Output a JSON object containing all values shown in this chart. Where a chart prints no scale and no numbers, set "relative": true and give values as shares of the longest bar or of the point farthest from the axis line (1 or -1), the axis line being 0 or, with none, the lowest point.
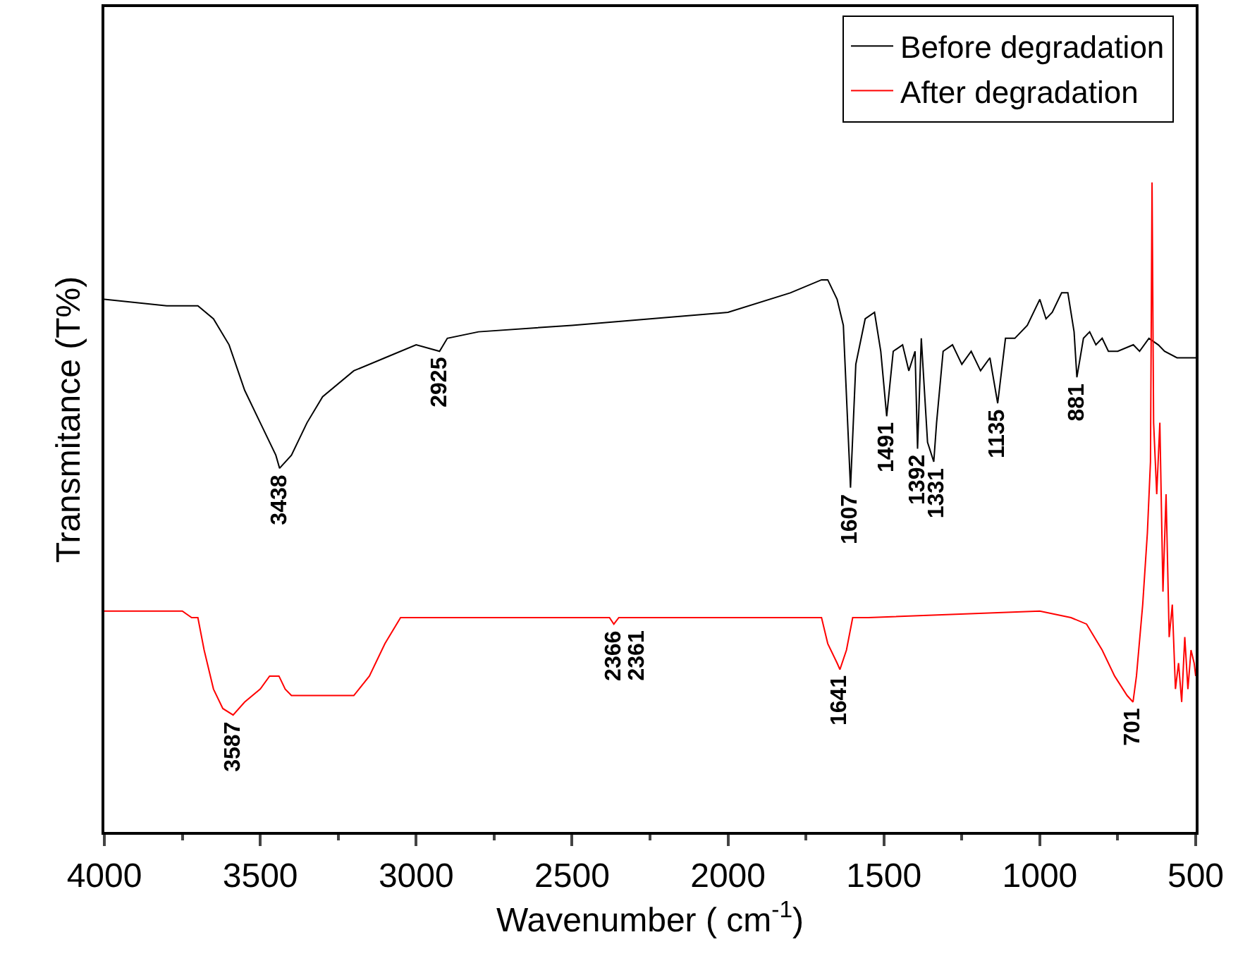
{
  "chart_data": {
    "type": "line",
    "relative": true,
    "xlabel": "Wavenumber ( cm$^{-1}$)",
    "ylabel": "Transmitance (T%)",
    "xlim": [
      4000,
      500
    ],
    "xticks": [
      4000,
      3500,
      3000,
      2500,
      2000,
      1500,
      1000,
      500
    ],
    "tick_labels": "x",
    "grid": false,
    "legend": "top right",
    "line_style": "solid",
    "marker": "none",
    "series": [
      {
        "name": "Before degradation",
        "color": "#000000",
        "x": [
          4000,
          3800,
          3700,
          3650,
          3600,
          3550,
          3500,
          3450,
          3438,
          3400,
          3350,
          3300,
          3200,
          3100,
          3000,
          2925,
          2900,
          2800,
          2500,
          2000,
          1800,
          1700,
          1680,
          1650,
          1630,
          1607,
          1590,
          1560,
          1530,
          1510,
          1491,
          1470,
          1440,
          1420,
          1400,
          1392,
          1380,
          1360,
          1340,
          1331,
          1310,
          1280,
          1250,
          1220,
          1190,
          1160,
          1135,
          1110,
          1080,
          1040,
          1000,
          980,
          960,
          930,
          910,
          890,
          881,
          860,
          840,
          820,
          800,
          780,
          750,
          700,
          680,
          650,
          620,
          600,
          560,
          500
        ],
        "values": [
          0.82,
          0.81,
          0.81,
          0.79,
          0.75,
          0.68,
          0.63,
          0.58,
          0.56,
          0.58,
          0.63,
          0.67,
          0.71,
          0.73,
          0.75,
          0.74,
          0.76,
          0.77,
          0.78,
          0.8,
          0.83,
          0.85,
          0.85,
          0.82,
          0.78,
          0.53,
          0.72,
          0.79,
          0.8,
          0.74,
          0.64,
          0.74,
          0.75,
          0.71,
          0.74,
          0.59,
          0.76,
          0.6,
          0.57,
          0.63,
          0.74,
          0.75,
          0.72,
          0.74,
          0.71,
          0.73,
          0.66,
          0.76,
          0.76,
          0.78,
          0.82,
          0.79,
          0.8,
          0.83,
          0.83,
          0.77,
          0.7,
          0.76,
          0.77,
          0.75,
          0.76,
          0.74,
          0.74,
          0.75,
          0.74,
          0.76,
          0.75,
          0.74,
          0.73,
          0.73
        ]
      },
      {
        "name": "After degradation",
        "color": "#ff0000",
        "x": [
          4000,
          3750,
          3720,
          3700,
          3680,
          3650,
          3620,
          3587,
          3550,
          3500,
          3470,
          3440,
          3420,
          3400,
          3350,
          3300,
          3200,
          3150,
          3100,
          3050,
          3000,
          2500,
          2380,
          2366,
          2350,
          2000,
          1750,
          1700,
          1680,
          1650,
          1641,
          1620,
          1600,
          1550,
          1000,
          900,
          850,
          800,
          760,
          720,
          701,
          690,
          670,
          655,
          645,
          640,
          635,
          625,
          615,
          605,
          595,
          585,
          575,
          565,
          555,
          545,
          535,
          525,
          515,
          505,
          500
        ],
        "values": [
          0.34,
          0.34,
          0.33,
          0.33,
          0.28,
          0.22,
          0.19,
          0.18,
          0.2,
          0.22,
          0.24,
          0.24,
          0.22,
          0.21,
          0.21,
          0.21,
          0.21,
          0.24,
          0.29,
          0.33,
          0.33,
          0.33,
          0.33,
          0.32,
          0.33,
          0.33,
          0.33,
          0.33,
          0.29,
          0.26,
          0.25,
          0.28,
          0.33,
          0.33,
          0.34,
          0.33,
          0.32,
          0.28,
          0.24,
          0.21,
          0.2,
          0.24,
          0.35,
          0.46,
          0.57,
          1.0,
          0.63,
          0.52,
          0.63,
          0.37,
          0.52,
          0.3,
          0.35,
          0.22,
          0.26,
          0.2,
          0.3,
          0.22,
          0.28,
          0.26,
          0.24
        ]
      }
    ],
    "annotations": [
      {
        "text": "3438",
        "x": 3438,
        "y": 0.56
      },
      {
        "text": "2925",
        "x": 2925,
        "y": 0.74
      },
      {
        "text": "1607",
        "x": 1607,
        "y": 0.53
      },
      {
        "text": "1491",
        "x": 1491,
        "y": 0.64
      },
      {
        "text": "1392",
        "x": 1392,
        "y": 0.59
      },
      {
        "text": "1331",
        "x": 1331,
        "y": 0.57
      },
      {
        "text": "1135",
        "x": 1135,
        "y": 0.66
      },
      {
        "text": "881",
        "x": 881,
        "y": 0.7
      },
      {
        "text": "3587",
        "x": 3587,
        "y": 0.18
      },
      {
        "text": "2366",
        "x": 2366,
        "y": 0.32
      },
      {
        "text": "2361",
        "x": 2290,
        "y": 0.32
      },
      {
        "text": "1641",
        "x": 1641,
        "y": 0.25
      },
      {
        "text": "701",
        "x": 701,
        "y": 0.2
      }
    ]
  }
}
